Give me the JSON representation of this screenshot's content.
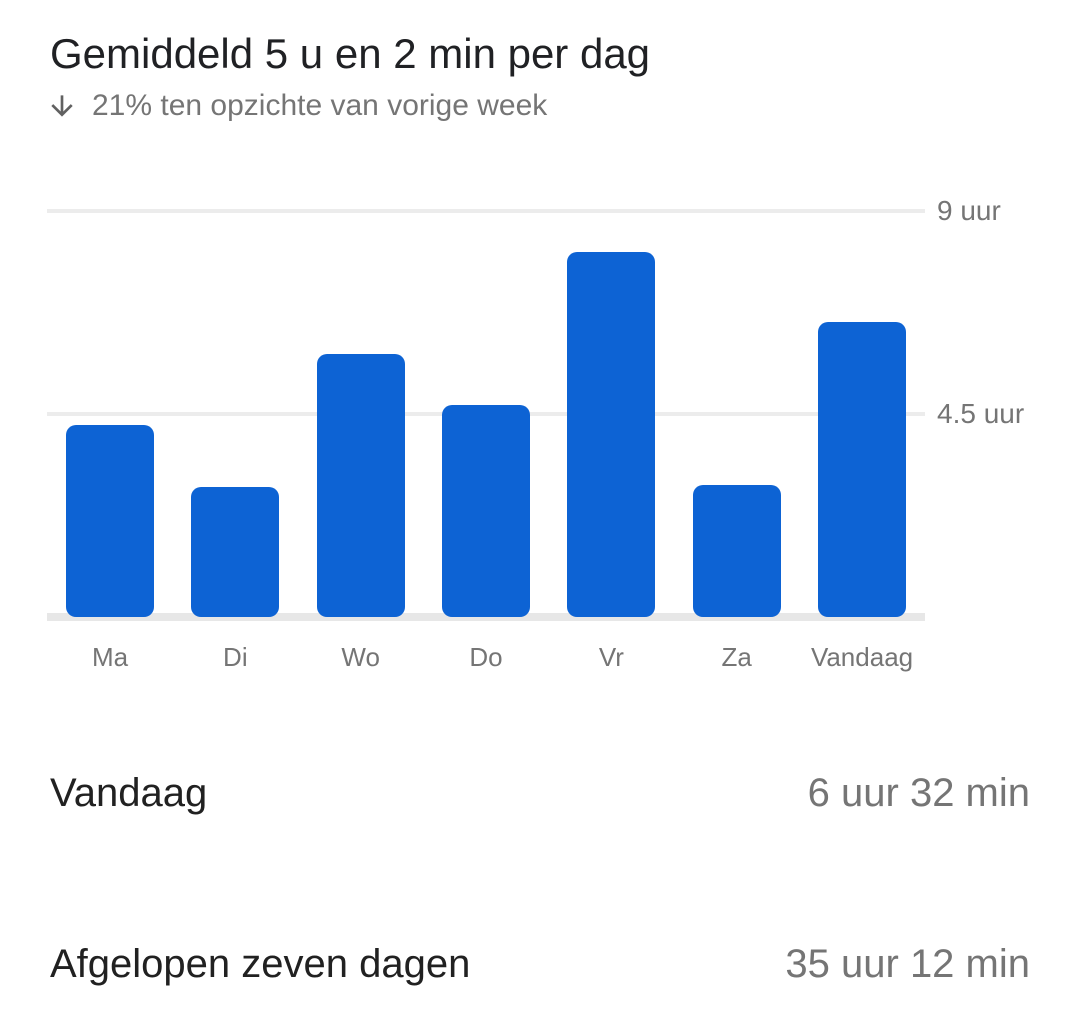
{
  "header": {
    "title": "Gemiddeld 5 u en 2 min per dag",
    "trend_icon": "arrow-downward",
    "trend_direction": "down",
    "trend_text": "21% ten opzichte van vorige week"
  },
  "chart_data": {
    "type": "bar",
    "title": "Gemiddeld 5 u en 2 min per dag",
    "categories": [
      "Ma",
      "Di",
      "Wo",
      "Do",
      "Vr",
      "Za",
      "Vandaag"
    ],
    "values": [
      4.25,
      2.88,
      5.82,
      4.7,
      8.1,
      2.92,
      6.53
    ],
    "unit": "uur",
    "xlabel": "",
    "ylabel": "",
    "ylim": [
      0,
      9
    ],
    "y_ticks": [
      {
        "label": "9 uur",
        "value": 9
      },
      {
        "label": "4.5 uur",
        "value": 4.5
      }
    ],
    "grid": "horizontal",
    "legend": "none",
    "bar_color": "#0d63d4",
    "gridline_color": "#ececec",
    "baseline_color": "#e7e7e7",
    "axis_label_color": "#757575"
  },
  "stats": {
    "rows": [
      {
        "label": "Vandaag",
        "value": "6 uur 32 min"
      },
      {
        "label": "Afgelopen zeven dagen",
        "value": "35 uur 12 min"
      }
    ]
  }
}
